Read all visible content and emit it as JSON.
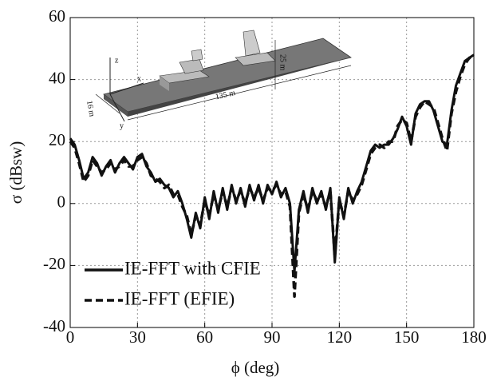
{
  "chart_data": {
    "type": "line",
    "xlabel": "ϕ (deg)",
    "ylabel": "σ (dBsw)",
    "x": [
      0,
      2,
      4,
      6,
      8,
      10,
      12,
      14,
      16,
      18,
      20,
      22,
      24,
      26,
      28,
      30,
      32,
      34,
      36,
      38,
      40,
      42,
      44,
      46,
      48,
      50,
      52,
      54,
      56,
      58,
      60,
      62,
      64,
      66,
      68,
      70,
      72,
      74,
      76,
      78,
      80,
      82,
      84,
      86,
      88,
      90,
      92,
      94,
      96,
      98,
      100,
      102,
      104,
      106,
      108,
      110,
      112,
      114,
      116,
      118,
      120,
      122,
      124,
      126,
      128,
      130,
      132,
      134,
      136,
      138,
      140,
      142,
      144,
      146,
      148,
      150,
      152,
      154,
      156,
      158,
      160,
      162,
      164,
      166,
      168,
      170,
      172,
      174,
      176,
      178,
      180
    ],
    "series": [
      {
        "name": "IE-FFT with CFIE",
        "color": "#111111",
        "dash": false,
        "values": [
          21,
          19,
          14,
          8,
          10,
          15,
          13,
          9,
          12,
          14,
          10,
          13,
          15,
          13,
          11,
          15,
          16,
          12,
          10,
          7,
          8,
          6,
          5,
          2,
          4,
          0,
          -5,
          -11,
          -3,
          -8,
          2,
          -5,
          4,
          -3,
          5,
          -2,
          6,
          0,
          5,
          -1,
          6,
          1,
          6,
          0,
          6,
          3,
          7,
          2,
          5,
          0,
          -22,
          -2,
          4,
          -3,
          5,
          0,
          4,
          -2,
          5,
          -19,
          2,
          -5,
          5,
          0,
          4,
          7,
          12,
          17,
          19,
          18,
          19,
          19,
          21,
          24,
          28,
          25,
          19,
          29,
          32,
          33,
          33,
          30,
          25,
          20,
          19,
          30,
          38,
          42,
          46,
          47,
          48
        ]
      },
      {
        "name": "IE-FFT (EFIE)",
        "color": "#111111",
        "dash": true,
        "values": [
          20,
          18,
          13,
          7,
          9,
          14,
          12,
          10,
          11,
          13,
          11,
          12,
          14,
          12,
          12,
          14,
          15,
          13,
          9,
          8,
          7,
          5,
          6,
          3,
          3,
          -1,
          -4,
          -10,
          -4,
          -7,
          1,
          -4,
          3,
          -2,
          4,
          -1,
          5,
          1,
          4,
          0,
          5,
          2,
          5,
          1,
          5,
          4,
          6,
          3,
          4,
          -1,
          -30,
          -3,
          3,
          -2,
          4,
          1,
          3,
          -1,
          4,
          -17,
          1,
          -4,
          4,
          1,
          3,
          6,
          11,
          16,
          18,
          19,
          18,
          20,
          20,
          25,
          27,
          26,
          20,
          28,
          31,
          33,
          32,
          31,
          26,
          21,
          17,
          29,
          36,
          41,
          45,
          47,
          47
        ]
      }
    ],
    "xlim": [
      0,
      180
    ],
    "xticks": [
      0,
      30,
      60,
      90,
      120,
      150,
      180
    ],
    "ylim": [
      -40,
      60
    ],
    "yticks": [
      -40,
      -20,
      0,
      20,
      40,
      60
    ],
    "grid": true,
    "legend": "lower left",
    "inset_labels": [
      "z",
      "x",
      "y",
      "16 m",
      "135 m",
      "25 m"
    ]
  }
}
